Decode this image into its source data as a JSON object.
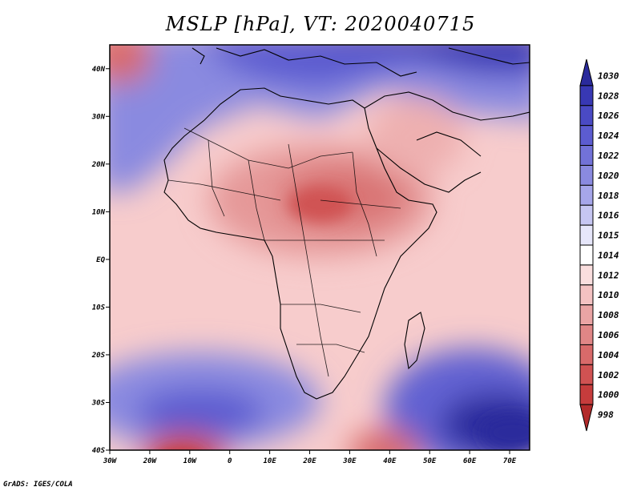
{
  "title": "MSLP [hPa], VT: 2020040715",
  "footer": "GrADS: IGES/COLA",
  "map": {
    "lon_range": [
      -30,
      75
    ],
    "lat_range": [
      -40,
      45
    ],
    "x_ticks": [
      "30W",
      "20W",
      "10W",
      "0",
      "10E",
      "20E",
      "30E",
      "40E",
      "50E",
      "60E",
      "70E"
    ],
    "y_ticks": [
      "40N",
      "30N",
      "20N",
      "10N",
      "EQ",
      "10S",
      "20S",
      "30S",
      "40S"
    ]
  },
  "colorbar": {
    "levels": [
      "1030",
      "1028",
      "1026",
      "1024",
      "1022",
      "1020",
      "1018",
      "1016",
      "1015",
      "1014",
      "1012",
      "1010",
      "1008",
      "1006",
      "1004",
      "1002",
      "1000",
      "998"
    ],
    "colors": [
      "#2a2a9c",
      "#3838b4",
      "#4a4ac4",
      "#5c5cd0",
      "#7272d8",
      "#8a8ae0",
      "#a6a6ea",
      "#c6c6f2",
      "#e6e6fa",
      "#ffffff",
      "#fadede",
      "#f4c2c2",
      "#eaa4a4",
      "#e08686",
      "#d86a6a",
      "#d05252",
      "#c63c3c",
      "#b22a2a"
    ]
  }
}
